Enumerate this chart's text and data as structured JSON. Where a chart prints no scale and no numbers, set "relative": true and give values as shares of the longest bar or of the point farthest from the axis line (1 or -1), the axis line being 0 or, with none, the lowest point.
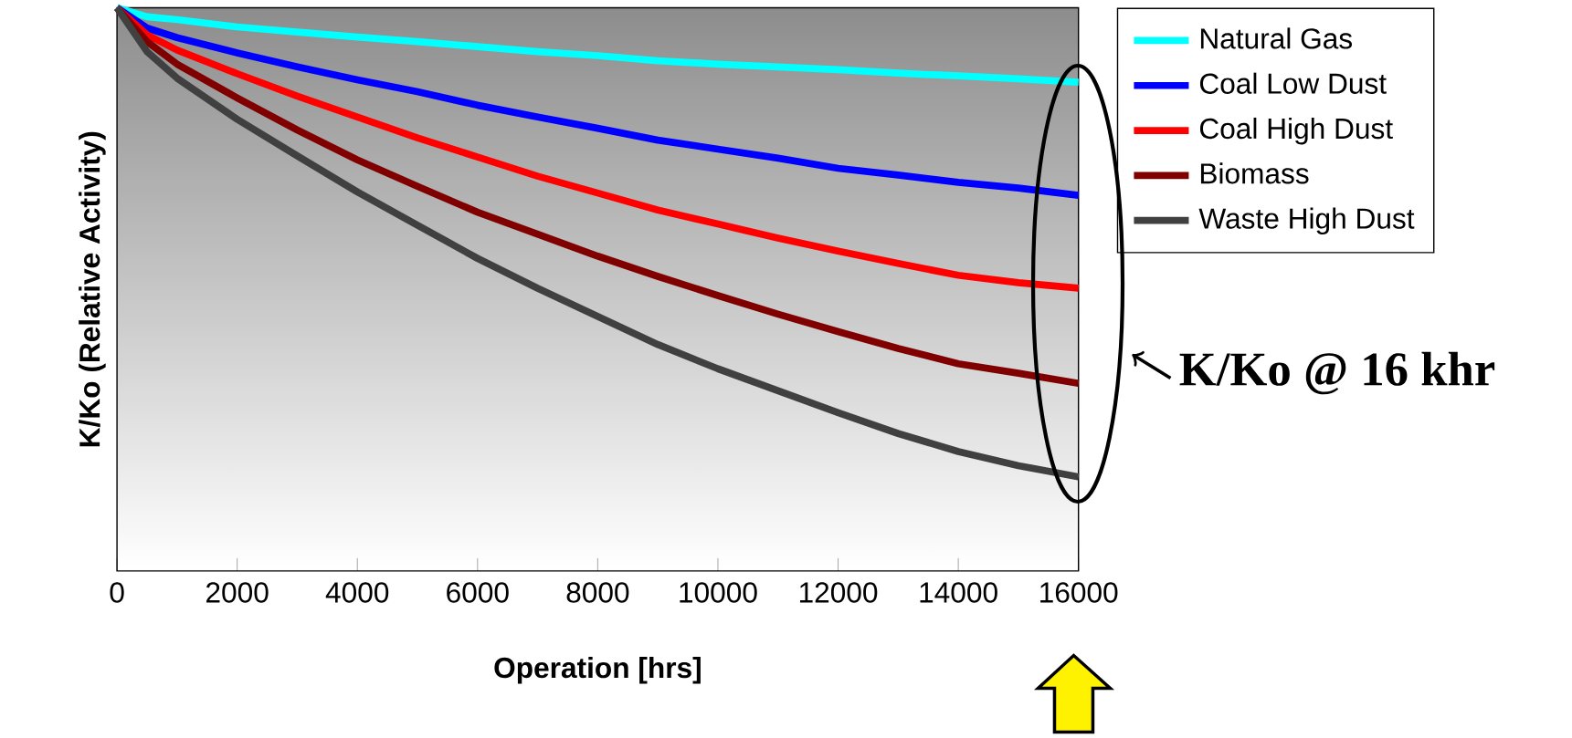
{
  "chart_data": {
    "type": "line",
    "relative": true,
    "xlabel": "Operation [hrs]",
    "ylabel": "K/Ko (Relative Activity)",
    "x": [
      0,
      500,
      1000,
      2000,
      3000,
      4000,
      5000,
      6000,
      7000,
      8000,
      9000,
      10000,
      11000,
      12000,
      13000,
      14000,
      15000,
      16000
    ],
    "xlim": [
      0,
      16000
    ],
    "xticks": [
      0,
      2000,
      4000,
      6000,
      8000,
      10000,
      12000,
      14000,
      16000
    ],
    "legend": "top right",
    "marker": "none",
    "line_style": "solid",
    "series": [
      {
        "name": "Natural Gas",
        "color": "#00ffff",
        "values": [
          1,
          0.984,
          0.979,
          0.966,
          0.957,
          0.948,
          0.94,
          0.931,
          0.922,
          0.915,
          0.906,
          0.9,
          0.895,
          0.89,
          0.884,
          0.879,
          0.874,
          0.868
        ]
      },
      {
        "name": "Coal Low Dust",
        "color": "#0000ff",
        "values": [
          1,
          0.964,
          0.947,
          0.92,
          0.895,
          0.872,
          0.851,
          0.827,
          0.806,
          0.786,
          0.765,
          0.749,
          0.733,
          0.715,
          0.703,
          0.69,
          0.68,
          0.667
        ]
      },
      {
        "name": "Coal High Dust",
        "color": "#ff0000",
        "values": [
          1,
          0.952,
          0.925,
          0.883,
          0.843,
          0.806,
          0.769,
          0.735,
          0.701,
          0.671,
          0.641,
          0.616,
          0.591,
          0.568,
          0.546,
          0.525,
          0.512,
          0.502
        ]
      },
      {
        "name": "Biomass",
        "color": "#800000",
        "values": [
          1,
          0.94,
          0.9,
          0.84,
          0.783,
          0.73,
          0.683,
          0.637,
          0.598,
          0.559,
          0.523,
          0.489,
          0.456,
          0.425,
          0.395,
          0.368,
          0.351,
          0.333
        ]
      },
      {
        "name": "Waste High Dust",
        "color": "#404040",
        "values": [
          1,
          0.922,
          0.875,
          0.802,
          0.737,
          0.673,
          0.614,
          0.555,
          0.502,
          0.452,
          0.402,
          0.359,
          0.32,
          0.281,
          0.244,
          0.212,
          0.187,
          0.167
        ]
      }
    ],
    "annotations": [
      "K/Ko @ 16 khr"
    ]
  }
}
